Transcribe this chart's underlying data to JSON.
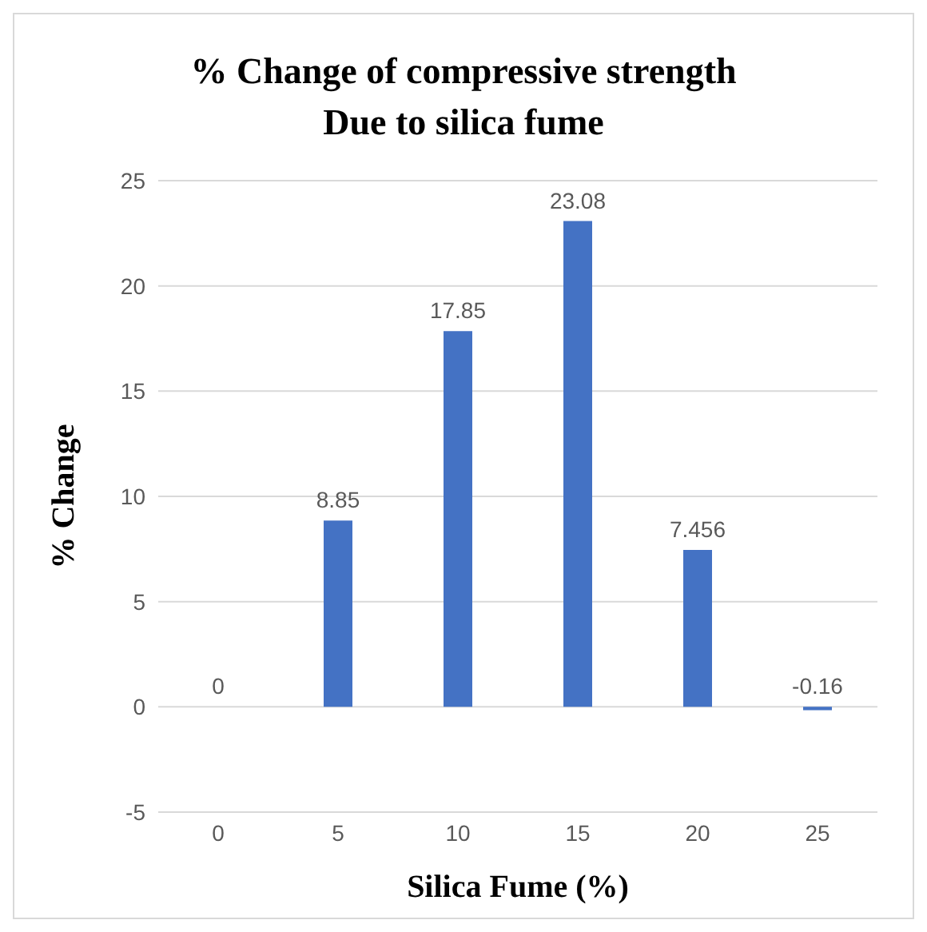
{
  "chart_data": {
    "type": "bar",
    "title": "% Change of  compressive strength\nDue to silica fume",
    "xlabel": "Silica Fume (%)",
    "ylabel": "% Change",
    "categories": [
      "0",
      "5",
      "10",
      "15",
      "20",
      "25"
    ],
    "values": [
      0,
      8.85,
      17.85,
      23.08,
      7.456,
      -0.16
    ],
    "color": "#4472c4",
    "ylim": [
      -5,
      25
    ],
    "yticks": [
      -5,
      0,
      5,
      10,
      15,
      20,
      25
    ],
    "grid": "y",
    "data_labels": true
  }
}
